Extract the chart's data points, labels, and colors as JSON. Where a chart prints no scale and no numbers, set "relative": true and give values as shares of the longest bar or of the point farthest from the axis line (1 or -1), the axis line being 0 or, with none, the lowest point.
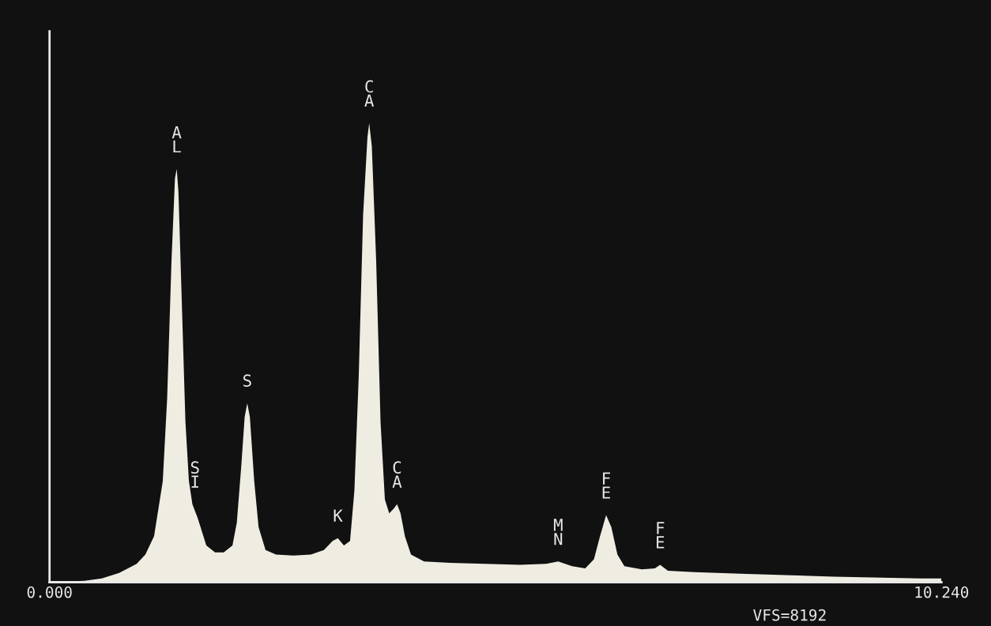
{
  "chart_data": {
    "type": "area",
    "relative": true,
    "color": "#efece2",
    "x": [
      0.0,
      0.4,
      0.6,
      0.8,
      1.0,
      1.1,
      1.2,
      1.3,
      1.35,
      1.4,
      1.44,
      1.46,
      1.48,
      1.52,
      1.56,
      1.6,
      1.64,
      1.7,
      1.8,
      1.9,
      2.0,
      2.1,
      2.15,
      2.2,
      2.24,
      2.27,
      2.3,
      2.35,
      2.4,
      2.48,
      2.6,
      2.8,
      3.0,
      3.15,
      3.25,
      3.31,
      3.38,
      3.45,
      3.5,
      3.55,
      3.6,
      3.65,
      3.67,
      3.7,
      3.75,
      3.8,
      3.85,
      3.9,
      3.95,
      3.99,
      4.03,
      4.08,
      4.15,
      4.3,
      4.6,
      5.0,
      5.4,
      5.7,
      5.84,
      6.0,
      6.15,
      6.25,
      6.32,
      6.39,
      6.45,
      6.52,
      6.6,
      6.8,
      6.95,
      7.01,
      7.1,
      7.4,
      8.0,
      9.0,
      10.0,
      10.24
    ],
    "values": [
      0,
      0.003,
      0.008,
      0.02,
      0.04,
      0.06,
      0.1,
      0.22,
      0.4,
      0.7,
      0.88,
      0.9,
      0.85,
      0.6,
      0.35,
      0.22,
      0.17,
      0.14,
      0.08,
      0.065,
      0.065,
      0.08,
      0.13,
      0.25,
      0.36,
      0.39,
      0.36,
      0.22,
      0.12,
      0.07,
      0.06,
      0.058,
      0.06,
      0.07,
      0.09,
      0.096,
      0.08,
      0.09,
      0.2,
      0.45,
      0.8,
      0.97,
      1.0,
      0.95,
      0.7,
      0.35,
      0.18,
      0.15,
      0.16,
      0.17,
      0.15,
      0.1,
      0.06,
      0.045,
      0.042,
      0.04,
      0.038,
      0.04,
      0.045,
      0.035,
      0.03,
      0.05,
      0.1,
      0.146,
      0.12,
      0.06,
      0.035,
      0.028,
      0.03,
      0.038,
      0.025,
      0.022,
      0.018,
      0.012,
      0.008,
      0.008
    ],
    "xlim": [
      0,
      10.24
    ],
    "xticks": [
      {
        "value": 0,
        "label": "0.000"
      },
      {
        "value": 10.24,
        "label": "10.240"
      }
    ],
    "tick_labels": "x",
    "grid": false,
    "legend": false,
    "annotations": [
      {
        "text": "AL",
        "x": 1.46,
        "y": 0.9
      },
      {
        "text": "SI",
        "x": 1.67,
        "y": 0.17
      },
      {
        "text": "S",
        "x": 2.27,
        "y": 0.39
      },
      {
        "text": "K",
        "x": 3.31,
        "y": 0.096
      },
      {
        "text": "CA",
        "x": 3.67,
        "y": 1.0
      },
      {
        "text": "CA",
        "x": 3.99,
        "y": 0.17
      },
      {
        "text": "MN",
        "x": 5.84,
        "y": 0.045
      },
      {
        "text": "FE",
        "x": 6.39,
        "y": 0.146
      },
      {
        "text": "FE",
        "x": 7.01,
        "y": 0.038
      },
      "VFS=8192"
    ]
  }
}
